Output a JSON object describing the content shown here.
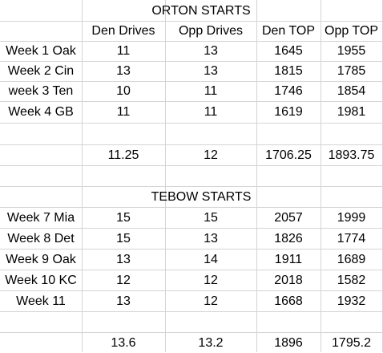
{
  "sheet": {
    "orton": {
      "heading": "ORTON STARTS",
      "headers": [
        "Den Drives",
        "Opp Drives",
        "Den TOP",
        "Opp TOP"
      ],
      "rows": [
        {
          "label": "Week 1 Oak",
          "values": [
            "11",
            "13",
            "1645",
            "1955"
          ]
        },
        {
          "label": "Week 2 Cin",
          "values": [
            "13",
            "13",
            "1815",
            "1785"
          ]
        },
        {
          "label": "week 3 Ten",
          "values": [
            "10",
            "11",
            "1746",
            "1854"
          ]
        },
        {
          "label": "Week 4 GB",
          "values": [
            "11",
            "11",
            "1619",
            "1981"
          ]
        }
      ],
      "averages": [
        "11.25",
        "12",
        "1706.25",
        "1893.75"
      ]
    },
    "tebow": {
      "heading": "TEBOW STARTS",
      "rows": [
        {
          "label": "Week 7 Mia",
          "values": [
            "15",
            "15",
            "2057",
            "1999"
          ]
        },
        {
          "label": "Week 8 Det",
          "values": [
            "15",
            "13",
            "1826",
            "1774"
          ]
        },
        {
          "label": "Week 9 Oak",
          "values": [
            "13",
            "14",
            "1911",
            "1689"
          ]
        },
        {
          "label": "Week 10 KC",
          "values": [
            "12",
            "12",
            "2018",
            "1582"
          ]
        },
        {
          "label": "Week 11",
          "values": [
            "13",
            "12",
            "1668",
            "1932"
          ]
        }
      ],
      "averages": [
        "13.6",
        "13.2",
        "1896",
        "1795.2"
      ]
    }
  }
}
